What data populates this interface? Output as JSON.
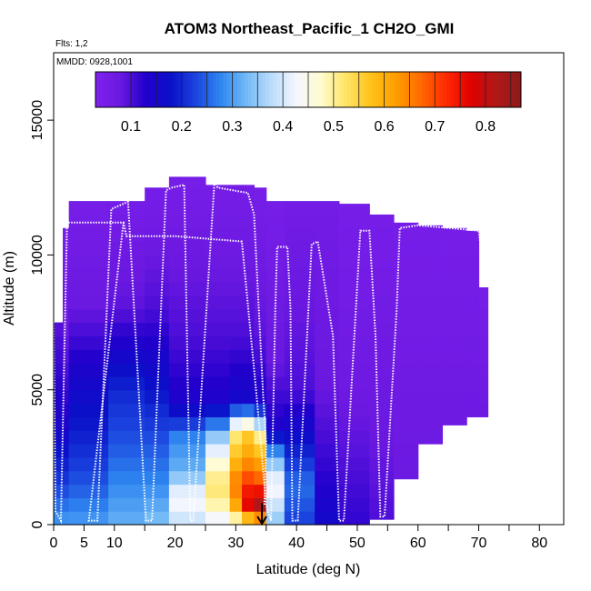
{
  "chart_data": {
    "type": "heatmap",
    "title": "ATOM3 Northeast_Pacific_1 CH2O_GMI",
    "annotations": {
      "flights": "Flts: 1,2",
      "dates": "MMDD: 0928,1001"
    },
    "xlabel": "Latitude (deg N)",
    "ylabel": "Altitude (m)",
    "xlim": [
      0,
      84
    ],
    "ylim": [
      0,
      17500
    ],
    "x_ticks": [
      0,
      5,
      10,
      15,
      20,
      25,
      30,
      35,
      40,
      45,
      50,
      55,
      60,
      65,
      70,
      75,
      80,
      85
    ],
    "x_tick_labels": [
      "0",
      "5",
      "10",
      "",
      "20",
      "",
      "30",
      "",
      "40",
      "",
      "50",
      "",
      "60",
      "",
      "70",
      "",
      "80",
      ""
    ],
    "y_ticks": [
      0,
      5000,
      10000,
      15000
    ],
    "y_tick_labels": [
      "0",
      "5000",
      "10000",
      "15000"
    ],
    "colorbar": {
      "range": [
        0.03,
        0.87
      ],
      "ticks": [
        0.1,
        0.2,
        0.3,
        0.4,
        0.5,
        0.6,
        0.7,
        0.8
      ],
      "tick_labels": [
        "0.1",
        "0.2",
        "0.3",
        "0.4",
        "0.5",
        "0.6",
        "0.7",
        "0.8"
      ],
      "colors": [
        "#7f22ee",
        "#6a18e0",
        "#2200cc",
        "#0a10c8",
        "#1b44de",
        "#2f86f0",
        "#6fb8f6",
        "#b9dcfa",
        "#f4f6ff",
        "#fffcd0",
        "#ffe466",
        "#ffc21a",
        "#ff9e00",
        "#ff6a00",
        "#ff2a00",
        "#e00000",
        "#b01818",
        "#8b1a1a"
      ]
    },
    "columns": [
      {
        "x0": 0,
        "x1": 1.5,
        "top": 7500,
        "profile": [
          [
            0,
            0.3
          ],
          [
            1500,
            0.22
          ],
          [
            4000,
            0.14
          ],
          [
            7000,
            0.1
          ],
          [
            8000,
            0.08
          ]
        ]
      },
      {
        "x0": 1.5,
        "x1": 2.5,
        "top": 11000,
        "profile": [
          [
            0,
            0.3
          ],
          [
            1500,
            0.22
          ],
          [
            4000,
            0.13
          ],
          [
            7000,
            0.08
          ],
          [
            11000,
            0.05
          ]
        ]
      },
      {
        "x0": 2.5,
        "x1": 9,
        "top": 12000,
        "profile": [
          [
            0,
            0.3
          ],
          [
            1500,
            0.24
          ],
          [
            3000,
            0.2
          ],
          [
            5000,
            0.16
          ],
          [
            8000,
            0.08
          ],
          [
            12000,
            0.05
          ]
        ]
      },
      {
        "x0": 9,
        "x1": 15,
        "top": 12000,
        "profile": [
          [
            0,
            0.32
          ],
          [
            1500,
            0.28
          ],
          [
            3000,
            0.24
          ],
          [
            5000,
            0.2
          ],
          [
            8000,
            0.09
          ],
          [
            12000,
            0.05
          ]
        ]
      },
      {
        "x0": 15,
        "x1": 19,
        "top": 12500,
        "profile": [
          [
            0,
            0.34
          ],
          [
            1500,
            0.28
          ],
          [
            3000,
            0.24
          ],
          [
            5000,
            0.18
          ],
          [
            8000,
            0.1
          ],
          [
            12500,
            0.05
          ]
        ]
      },
      {
        "x0": 19,
        "x1": 25,
        "top": 12900,
        "profile": [
          [
            0,
            0.38
          ],
          [
            1000,
            0.44
          ],
          [
            2000,
            0.32
          ],
          [
            3200,
            0.28
          ],
          [
            4500,
            0.14
          ],
          [
            7000,
            0.1
          ],
          [
            12900,
            0.05
          ]
        ]
      },
      {
        "x0": 25,
        "x1": 29,
        "top": 12600,
        "profile": [
          [
            0,
            0.4
          ],
          [
            1000,
            0.52
          ],
          [
            2000,
            0.5
          ],
          [
            3200,
            0.36
          ],
          [
            4500,
            0.14
          ],
          [
            7000,
            0.1
          ],
          [
            12600,
            0.05
          ]
        ]
      },
      {
        "x0": 29,
        "x1": 31,
        "top": 12600,
        "profile": [
          [
            0,
            0.44
          ],
          [
            800,
            0.62
          ],
          [
            1500,
            0.66
          ],
          [
            2500,
            0.58
          ],
          [
            3500,
            0.5
          ],
          [
            4500,
            0.16
          ],
          [
            7000,
            0.1
          ],
          [
            12600,
            0.05
          ]
        ]
      },
      {
        "x0": 31,
        "x1": 33,
        "top": 12600,
        "profile": [
          [
            0,
            0.5
          ],
          [
            800,
            0.78
          ],
          [
            1500,
            0.72
          ],
          [
            2500,
            0.62
          ],
          [
            3500,
            0.55
          ],
          [
            4500,
            0.16
          ],
          [
            7000,
            0.1
          ],
          [
            12600,
            0.05
          ]
        ]
      },
      {
        "x0": 33,
        "x1": 35,
        "top": 12500,
        "profile": [
          [
            0,
            0.55
          ],
          [
            800,
            0.84
          ],
          [
            1500,
            0.7
          ],
          [
            2500,
            0.6
          ],
          [
            3300,
            0.5
          ],
          [
            4500,
            0.14
          ],
          [
            7000,
            0.09
          ],
          [
            12500,
            0.05
          ]
        ]
      },
      {
        "x0": 35,
        "x1": 38,
        "top": 12000,
        "profile": [
          [
            0,
            0.34
          ],
          [
            1500,
            0.44
          ],
          [
            2500,
            0.32
          ],
          [
            3500,
            0.14
          ],
          [
            6000,
            0.08
          ],
          [
            12000,
            0.05
          ]
        ]
      },
      {
        "x0": 38,
        "x1": 43,
        "top": 12000,
        "profile": [
          [
            0,
            0.22
          ],
          [
            1500,
            0.26
          ],
          [
            3000,
            0.18
          ],
          [
            5000,
            0.1
          ],
          [
            8000,
            0.08
          ],
          [
            12000,
            0.06
          ]
        ]
      },
      {
        "x0": 43,
        "x1": 47,
        "top": 12000,
        "profile": [
          [
            0,
            0.16
          ],
          [
            2000,
            0.12
          ],
          [
            5000,
            0.08
          ],
          [
            12000,
            0.06
          ]
        ]
      },
      {
        "x0": 47,
        "x1": 52,
        "top": 11900,
        "profile": [
          [
            0,
            0.12
          ],
          [
            2000,
            0.1
          ],
          [
            5000,
            0.07
          ],
          [
            11900,
            0.05
          ]
        ]
      },
      {
        "x0": 52,
        "x1": 56,
        "top": 11500,
        "profile": [
          [
            0,
            0.1
          ],
          [
            3000,
            0.08
          ],
          [
            6000,
            0.07
          ],
          [
            11500,
            0.05
          ]
        ]
      },
      {
        "x0": 56,
        "x1": 60,
        "top": 11200,
        "profile": [
          [
            0,
            0.08
          ],
          [
            4000,
            0.07
          ],
          [
            11200,
            0.05
          ]
        ]
      },
      {
        "x0": 60,
        "x1": 64,
        "top": 11100,
        "profile": [
          [
            0,
            0.08
          ],
          [
            4000,
            0.07
          ],
          [
            11100,
            0.05
          ]
        ]
      },
      {
        "x0": 64,
        "x1": 68,
        "top": 11000,
        "profile": [
          [
            0,
            0.08
          ],
          [
            4000,
            0.07
          ],
          [
            11000,
            0.05
          ]
        ]
      },
      {
        "x0": 68,
        "x1": 70,
        "top": 10900,
        "profile": [
          [
            0,
            0.08
          ],
          [
            4000,
            0.07
          ],
          [
            10900,
            0.05
          ]
        ]
      },
      {
        "x0": 70,
        "x1": 71.5,
        "top": 8800,
        "profile": [
          [
            0,
            0.08
          ],
          [
            4000,
            0.07
          ],
          [
            8800,
            0.05
          ]
        ]
      }
    ],
    "bottoms": [
      {
        "x0": 35,
        "x1": 47,
        "bottom": 0
      },
      {
        "x0": 47,
        "x1": 53,
        "bottom": 0
      },
      {
        "x0": 53,
        "x1": 55,
        "bottom": 200
      },
      {
        "x0": 55,
        "x1": 57,
        "bottom": 900
      },
      {
        "x0": 57,
        "x1": 59,
        "bottom": 1700
      },
      {
        "x0": 59,
        "x1": 61,
        "bottom": 2300
      },
      {
        "x0": 61,
        "x1": 63,
        "bottom": 3000
      },
      {
        "x0": 63,
        "x1": 65,
        "bottom": 3400
      },
      {
        "x0": 65,
        "x1": 68,
        "bottom": 3700
      },
      {
        "x0": 68,
        "x1": 70,
        "bottom": 4000
      },
      {
        "x0": 70,
        "x1": 71.5,
        "bottom": 4000
      }
    ],
    "flight_track": [
      [
        0,
        7500
      ],
      [
        0.3,
        500
      ],
      [
        1.2,
        150
      ],
      [
        2.2,
        11200
      ],
      [
        8.5,
        11200
      ],
      [
        11.5,
        11200
      ],
      [
        5.8,
        150
      ],
      [
        7.2,
        150
      ],
      [
        9.5,
        11700
      ],
      [
        12.5,
        12000
      ],
      [
        12.2,
        12200
      ],
      [
        15.2,
        150
      ],
      [
        16.2,
        150
      ],
      [
        18.5,
        12400
      ],
      [
        19.5,
        12500
      ],
      [
        21.5,
        12600
      ],
      [
        22.5,
        150
      ],
      [
        23.0,
        150
      ],
      [
        26.5,
        12800
      ],
      [
        27,
        12500
      ],
      [
        32,
        12300
      ],
      [
        33,
        11500
      ],
      [
        34.5,
        4800
      ],
      [
        35.0,
        3000
      ],
      [
        34.7,
        700
      ]
    ],
    "flight_track_2": [
      [
        11.5,
        11200
      ],
      [
        12,
        10700
      ],
      [
        20,
        10700
      ],
      [
        31,
        10500
      ],
      [
        33.5,
        4600
      ],
      [
        35,
        700
      ],
      [
        35.8,
        150
      ],
      [
        36.5,
        8000
      ],
      [
        36.8,
        10300
      ],
      [
        38.5,
        10300
      ],
      [
        39,
        8000
      ],
      [
        39.3,
        150
      ],
      [
        40.2,
        150
      ],
      [
        42.5,
        10400
      ],
      [
        43.5,
        10500
      ],
      [
        46,
        7000
      ],
      [
        47,
        150
      ],
      [
        47.8,
        150
      ],
      [
        50.5,
        10900
      ],
      [
        52,
        10900
      ],
      [
        53,
        7000
      ],
      [
        53.8,
        300
      ],
      [
        54.5,
        300
      ],
      [
        56.5,
        8000
      ],
      [
        57,
        11000
      ],
      [
        60,
        11100
      ],
      [
        70,
        10900
      ],
      [
        70.5,
        10000
      ]
    ],
    "marker": {
      "lat": 34.3,
      "from_alt": 800,
      "to_alt": 0
    }
  }
}
